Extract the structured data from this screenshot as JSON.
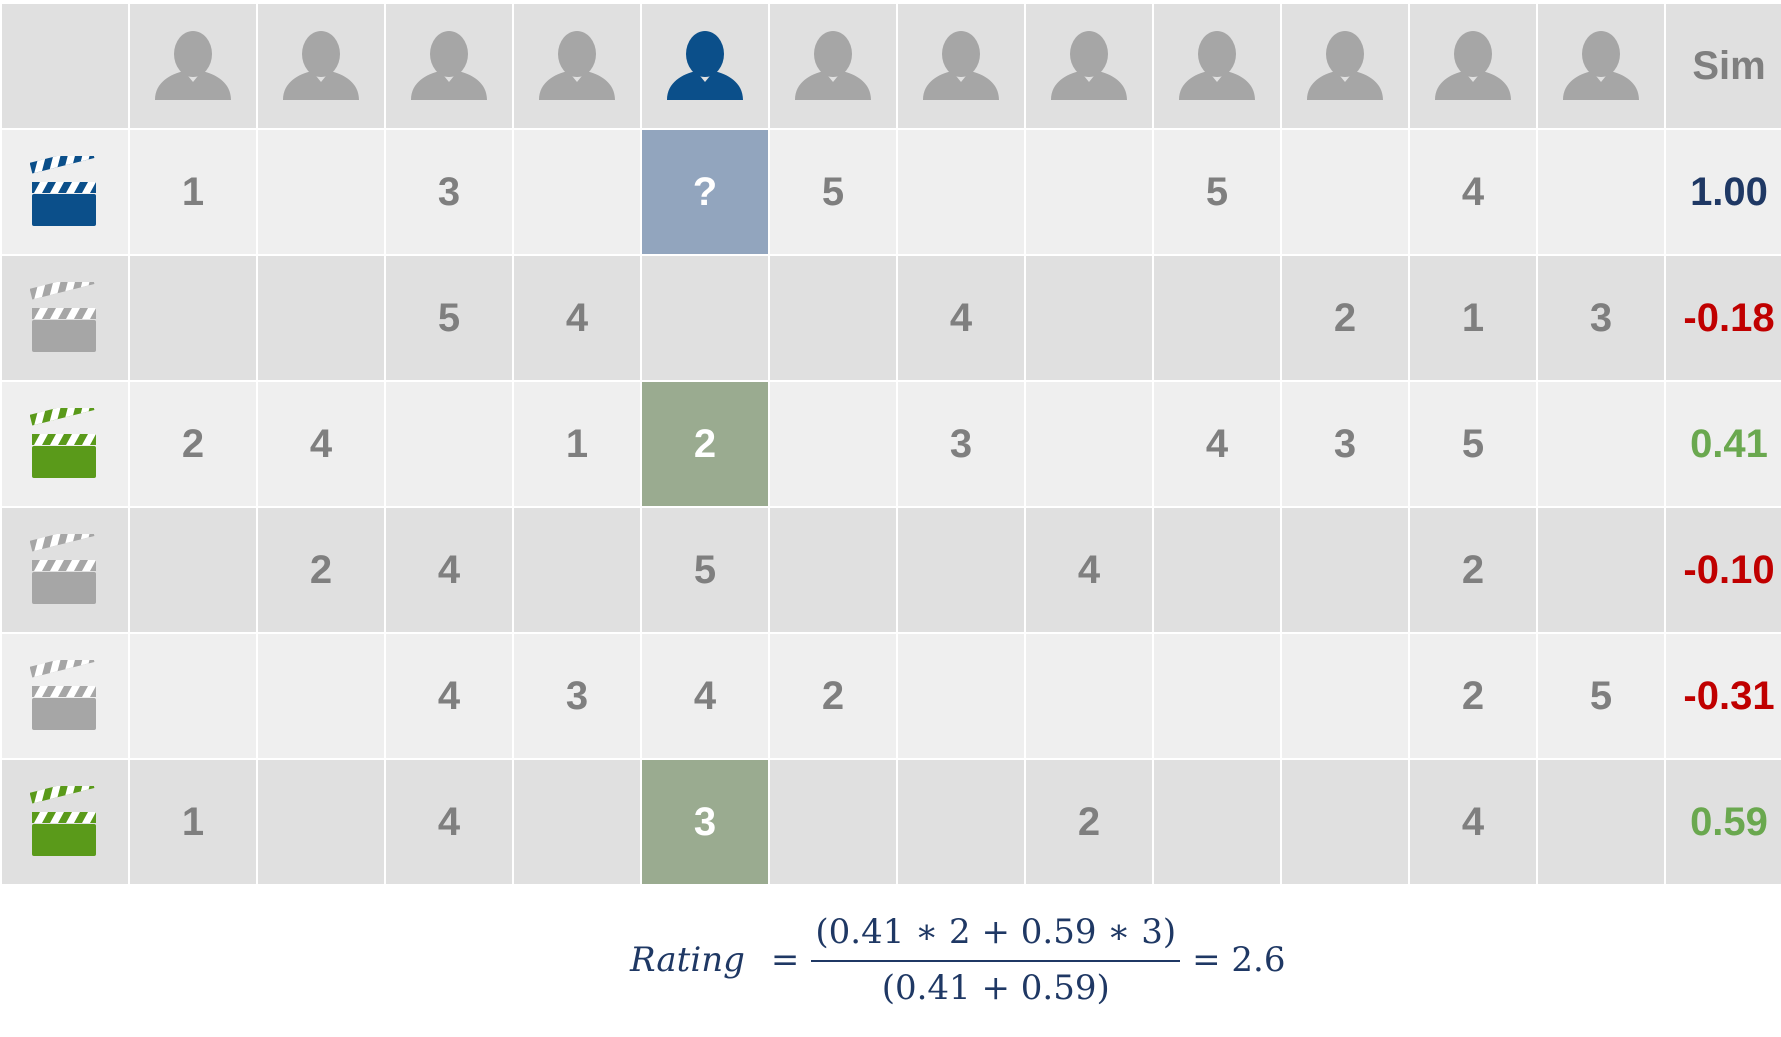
{
  "colors": {
    "target_blue": "#0b4f8a",
    "gray_icon": "#a6a6a6",
    "green_icon": "#5a9a1a",
    "sim_positive": "#6aa84f",
    "sim_negative": "#c00000",
    "sim_target": "#1f3864"
  },
  "header": {
    "sim_label": "Sim",
    "user_icons": [
      "gray",
      "gray",
      "gray",
      "gray",
      "blue",
      "gray",
      "gray",
      "gray",
      "gray",
      "gray",
      "gray",
      "gray"
    ]
  },
  "rows": [
    {
      "movie_icon": "blue",
      "ratings": [
        "1",
        "",
        "3",
        "",
        "?",
        "5",
        "",
        "",
        "5",
        "",
        "4",
        ""
      ],
      "sim": "1.00",
      "sim_color": "#1f3864"
    },
    {
      "movie_icon": "gray",
      "ratings": [
        "",
        "",
        "5",
        "4",
        "",
        "",
        "4",
        "",
        "",
        "2",
        "1",
        "3"
      ],
      "sim": "-0.18",
      "sim_color": "#c00000"
    },
    {
      "movie_icon": "green",
      "ratings": [
        "2",
        "4",
        "",
        "1",
        "2",
        "",
        "3",
        "",
        "4",
        "3",
        "5",
        ""
      ],
      "sim": "0.41",
      "sim_color": "#6aa84f"
    },
    {
      "movie_icon": "gray",
      "ratings": [
        "",
        "2",
        "4",
        "",
        "5",
        "",
        "",
        "4",
        "",
        "",
        "2",
        ""
      ],
      "sim": "-0.10",
      "sim_color": "#c00000"
    },
    {
      "movie_icon": "gray",
      "ratings": [
        "",
        "",
        "4",
        "3",
        "4",
        "2",
        "",
        "",
        "",
        "",
        "2",
        "5"
      ],
      "sim": "-0.31",
      "sim_color": "#c00000"
    },
    {
      "movie_icon": "green",
      "ratings": [
        "1",
        "",
        "4",
        "",
        "3",
        "",
        "",
        "2",
        "",
        "",
        "4",
        ""
      ],
      "sim": "0.59",
      "sim_color": "#6aa84f"
    }
  ],
  "formula": {
    "lhs": "Rating",
    "eq": "=",
    "numerator": "(0.41 ∗ 2 + 0.59  ∗ 3)",
    "denominator": "(0.41 + 0.59)",
    "result": "= 2.6"
  }
}
